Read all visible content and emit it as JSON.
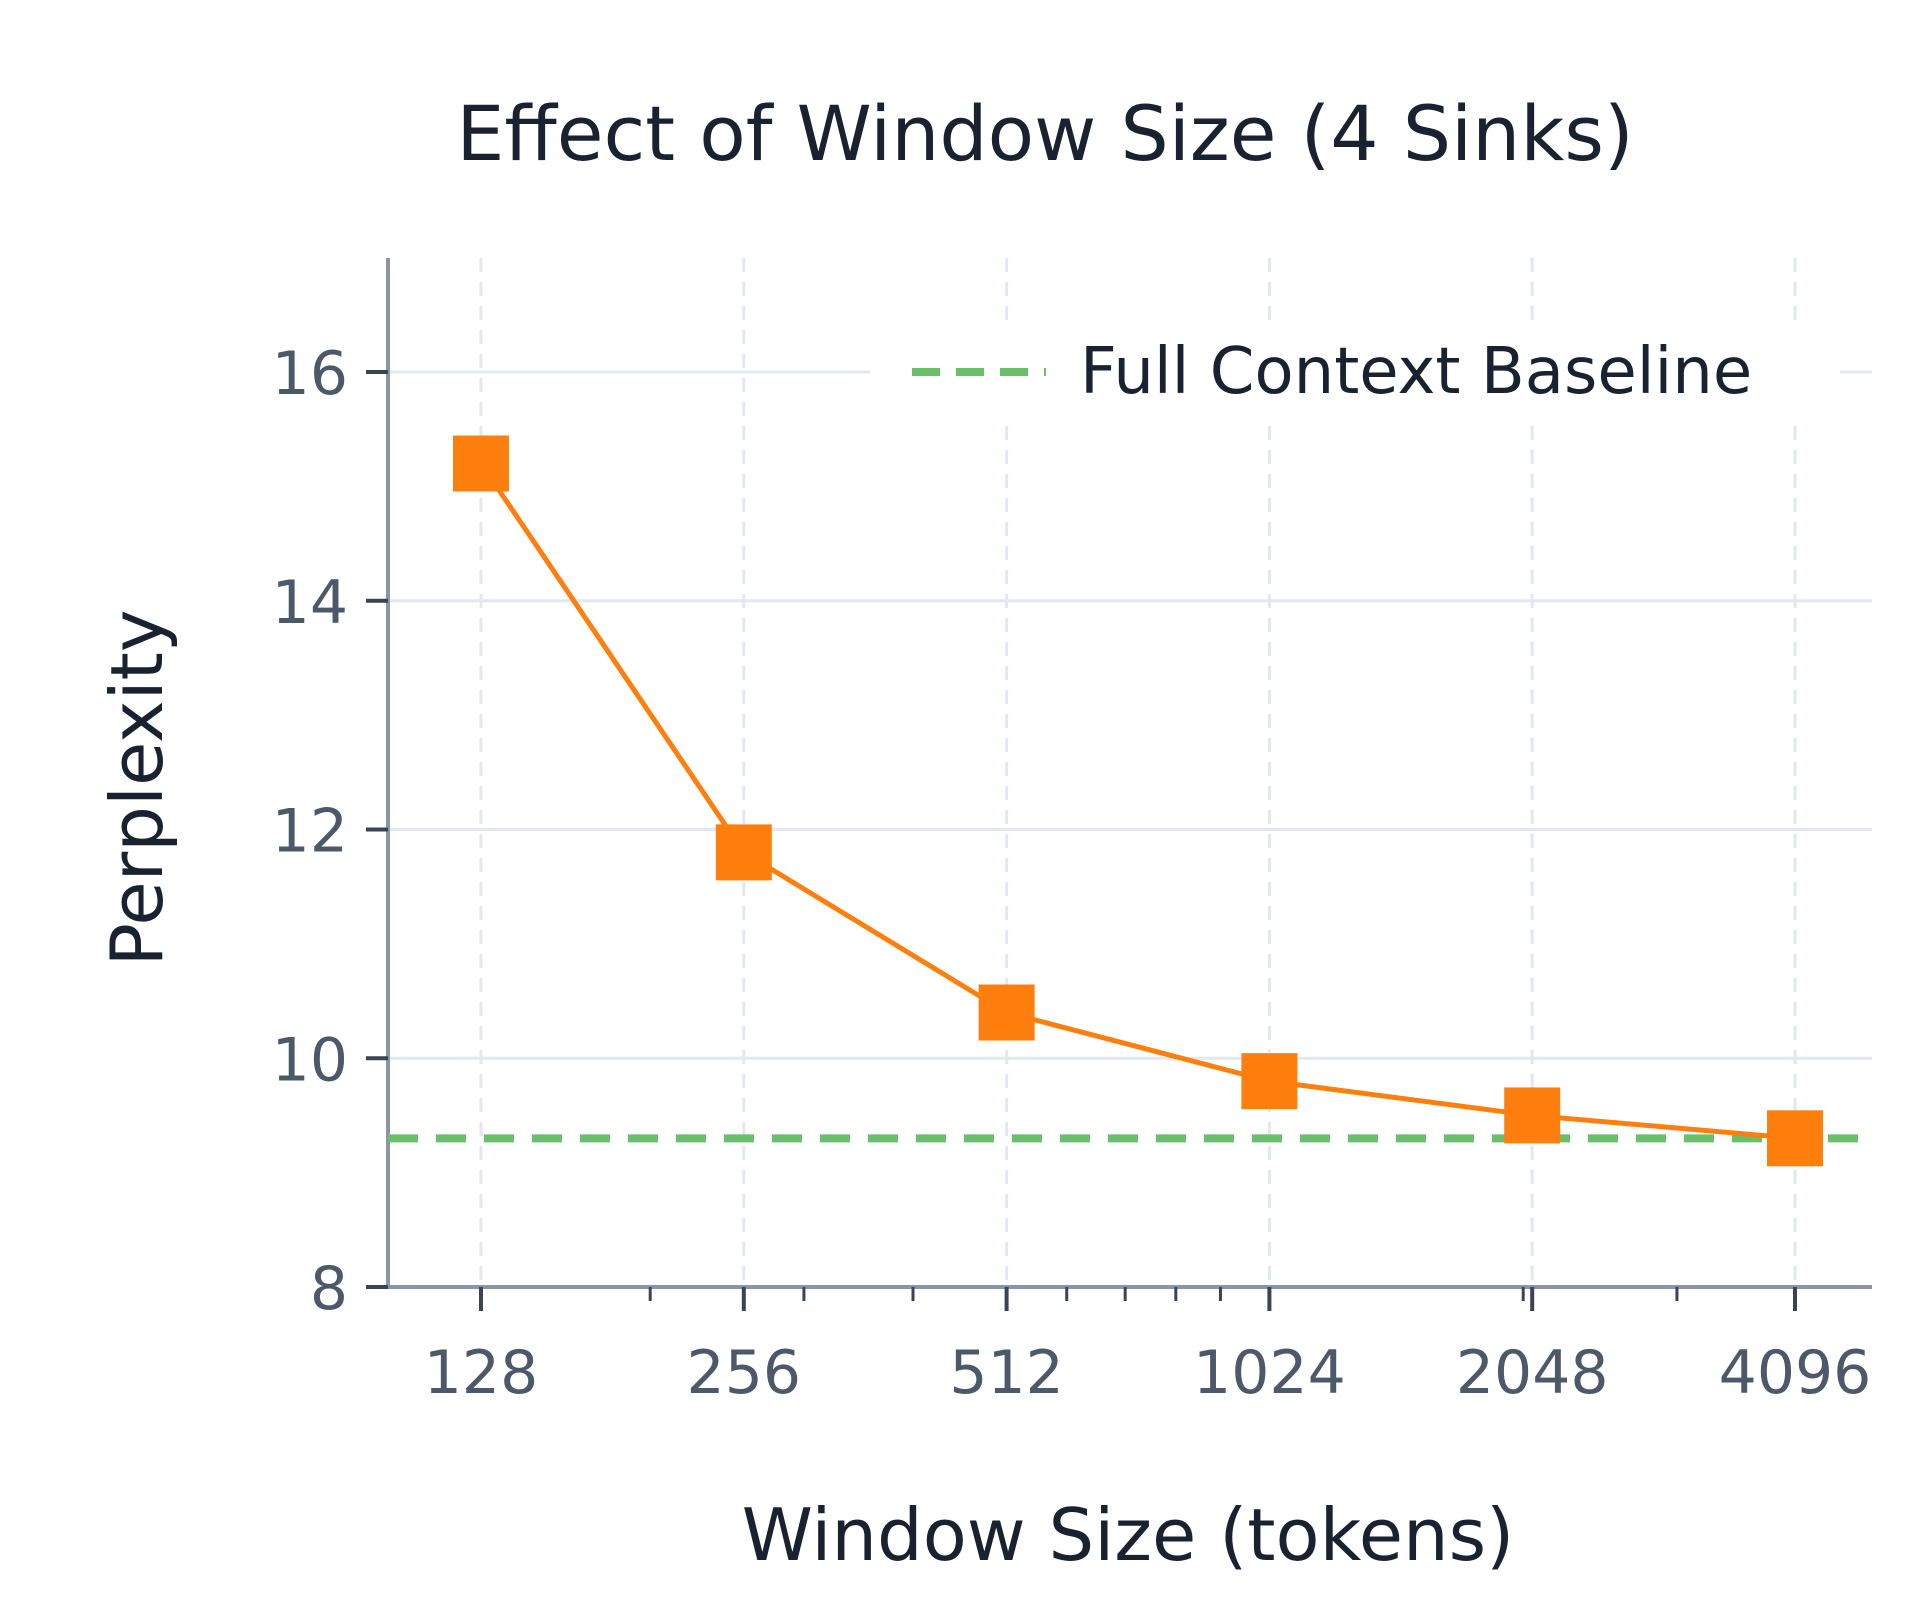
{
  "chart_data": {
    "type": "line",
    "title": "Effect of Window Size (4 Sinks)",
    "xlabel": "Window Size (tokens)",
    "ylabel": "Perplexity",
    "x_scale": "log2",
    "x": [
      128,
      256,
      512,
      1024,
      2048,
      4096
    ],
    "x_tick_labels": [
      "128",
      "256",
      "512",
      "1024",
      "2048",
      "4096"
    ],
    "ylim": [
      8,
      17
    ],
    "y_ticks": [
      8,
      10,
      12,
      14,
      16
    ],
    "y_tick_labels": [
      "8",
      "10",
      "12",
      "14",
      "16"
    ],
    "grid": true,
    "legend": {
      "placement": "top-right"
    },
    "series": [
      {
        "values": [
          15.2,
          11.8,
          10.4,
          9.8,
          9.5,
          9.3
        ],
        "color": "#ff7f0e",
        "marker": "square",
        "line_style": "solid"
      }
    ],
    "reference_lines": [
      {
        "name": "Full Context Baseline",
        "y": 9.3,
        "color": "#6abf69",
        "line_style": "dashed"
      }
    ]
  }
}
